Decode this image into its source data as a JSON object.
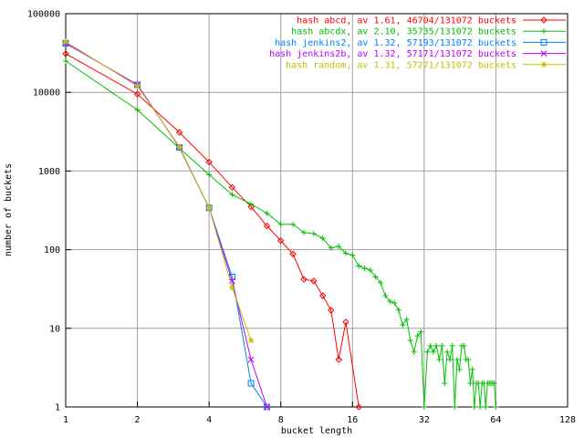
{
  "chart_data": {
    "type": "line",
    "xlabel": "bucket length",
    "ylabel": "number of buckets",
    "log_x": true,
    "log_y": true,
    "grid": true,
    "legend": "top-right",
    "xlim": [
      1,
      128
    ],
    "xticks": [
      1,
      2,
      4,
      8,
      16,
      32,
      64,
      128
    ],
    "ylim": [
      1,
      100000
    ],
    "yticks": [
      1,
      10,
      100,
      1000,
      10000,
      100000
    ],
    "series": [
      {
        "name": "hash abcd, av 1.61, 46704/131072 buckets",
        "color": "#ff0000",
        "marker": "diamond",
        "x": [
          1,
          2,
          3,
          4,
          5,
          6,
          7,
          8,
          9,
          10,
          11,
          12,
          13,
          14,
          15,
          17
        ],
        "values": [
          31000,
          9500,
          3100,
          1300,
          620,
          350,
          200,
          130,
          88,
          42,
          40,
          26,
          17,
          4,
          12,
          1
        ]
      },
      {
        "name": "hash abcdx, av 2.10, 35735/131072 buckets",
        "color": "#00c000",
        "marker": "plus",
        "x": [
          1,
          2,
          3,
          4,
          5,
          6,
          7,
          8,
          9,
          10,
          11,
          12,
          13,
          14,
          15,
          16,
          17,
          18,
          19,
          20,
          21,
          22,
          23,
          24,
          25,
          26,
          27,
          28,
          29,
          30,
          31,
          32,
          33,
          34,
          35,
          36,
          37,
          38,
          39,
          40,
          41,
          42,
          43,
          44,
          45,
          46,
          47,
          48,
          49,
          50,
          51,
          52,
          53,
          54,
          55,
          56,
          57,
          58,
          59,
          60,
          61,
          62,
          63,
          64
        ],
        "values": [
          25000,
          6000,
          1950,
          900,
          500,
          380,
          290,
          210,
          210,
          165,
          160,
          140,
          105,
          110,
          90,
          85,
          62,
          58,
          55,
          45,
          38,
          26,
          22,
          21,
          17,
          11,
          13,
          7,
          5,
          8,
          9,
          1,
          5,
          6,
          5,
          6,
          4,
          6,
          2,
          5,
          4,
          6,
          1,
          4,
          3,
          6,
          6,
          4,
          4,
          2,
          3,
          1,
          2,
          2,
          1,
          2,
          2,
          1,
          2,
          2,
          2,
          2,
          2,
          1
        ]
      },
      {
        "name": "hash jenkins2, av 1.32, 57193/131072 buckets",
        "color": "#0080ff",
        "marker": "square",
        "x": [
          1,
          2,
          3,
          4,
          5,
          6,
          7
        ],
        "values": [
          42000,
          12500,
          2000,
          340,
          45,
          2,
          1
        ]
      },
      {
        "name": "hash jenkins2b, av 1.32, 57171/131072 buckets",
        "color": "#c000ff",
        "marker": "cross",
        "x": [
          1,
          2,
          3,
          4,
          5,
          6,
          7
        ],
        "values": [
          42000,
          12500,
          2000,
          340,
          40,
          4,
          1
        ]
      },
      {
        "name": "hash random, av 1.31, 57271/131072 buckets",
        "color": "#c0c000",
        "marker": "star",
        "x": [
          1,
          2,
          3,
          4,
          5,
          6
        ],
        "values": [
          44000,
          12000,
          2050,
          340,
          33,
          7
        ]
      }
    ]
  }
}
